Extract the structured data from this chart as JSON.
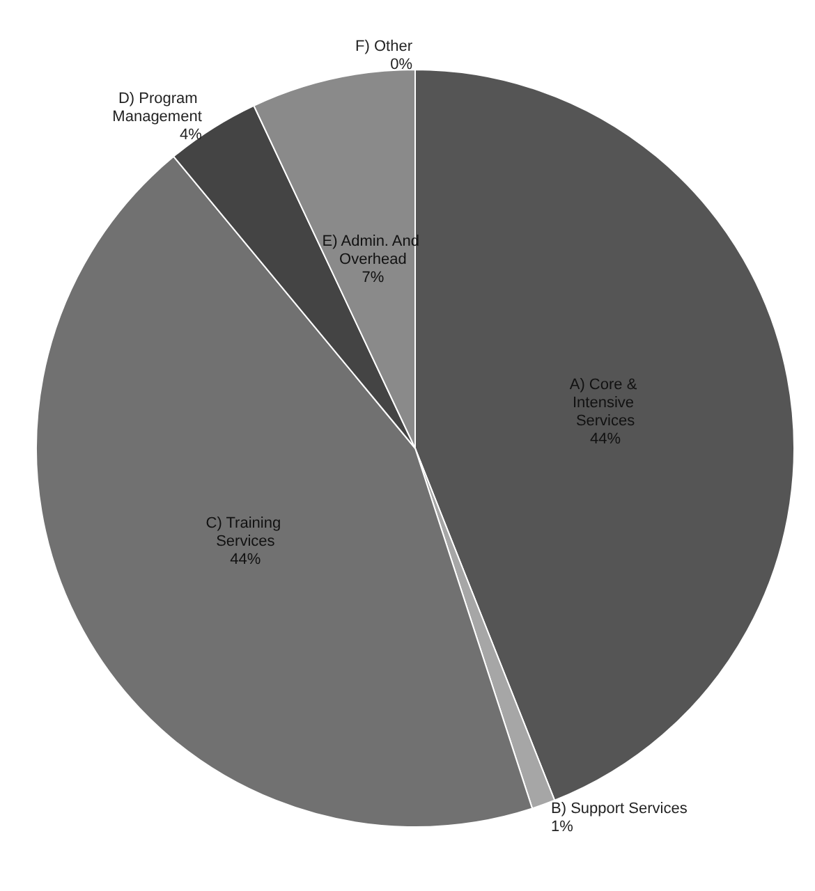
{
  "chart_data": {
    "type": "pie",
    "categories": [
      "A) Core & Intensive Services",
      "B) Support Services",
      "C) Training Services",
      "D) Program Management",
      "E) Admin. And Overhead",
      "F) Other"
    ],
    "values": [
      44,
      1,
      44,
      4,
      7,
      0
    ],
    "value_labels": [
      "44%",
      "1%",
      "44%",
      "4%",
      "7%",
      "0%"
    ],
    "colors": [
      "#555555",
      "#a6a6a6",
      "#717171",
      "#444444",
      "#8a8a8a",
      "#bfbfbf"
    ],
    "legend": false
  }
}
